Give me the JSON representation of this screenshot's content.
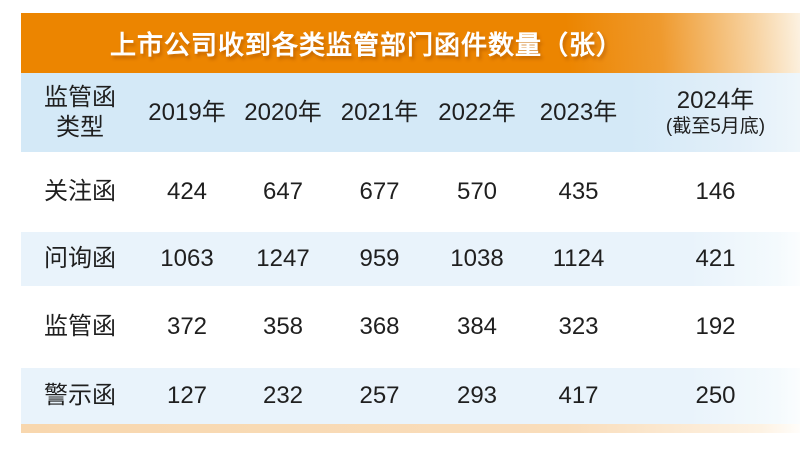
{
  "title": "上市公司收到各类监管部门函件数量（张）",
  "colors": {
    "accent_orange": "#ec8500",
    "header_band_blue": "#d4e9f7",
    "row_band_blue": "#e9f3fb",
    "strip_peach": "#f8d7ae",
    "text": "#1f1f1f",
    "title_text": "#ffffff"
  },
  "table": {
    "col0_header_line1": "监管函",
    "col0_header_line2": "类型",
    "year_headers": [
      "2019年",
      "2020年",
      "2021年",
      "2022年",
      "2023年"
    ],
    "last_header_line1": "2024年",
    "last_header_line2": "(截至5月底)",
    "rows": [
      {
        "label": "关注函",
        "values": [
          "424",
          "647",
          "677",
          "570",
          "435",
          "146"
        ]
      },
      {
        "label": "问询函",
        "values": [
          "1063",
          "1247",
          "959",
          "1038",
          "1124",
          "421"
        ]
      },
      {
        "label": "监管函",
        "values": [
          "372",
          "358",
          "368",
          "384",
          "323",
          "192"
        ]
      },
      {
        "label": "警示函",
        "values": [
          "127",
          "232",
          "257",
          "293",
          "417",
          "250"
        ]
      }
    ]
  },
  "chart_data": {
    "type": "table",
    "title": "上市公司收到各类监管部门函件数量（张）",
    "row_header": "监管函类型",
    "categories": [
      "2019年",
      "2020年",
      "2021年",
      "2022年",
      "2023年",
      "2024年(截至5月底)"
    ],
    "series": [
      {
        "name": "关注函",
        "values": [
          424,
          647,
          677,
          570,
          435,
          146
        ]
      },
      {
        "name": "问询函",
        "values": [
          1063,
          1247,
          959,
          1038,
          1124,
          421
        ]
      },
      {
        "name": "监管函",
        "values": [
          372,
          358,
          368,
          384,
          323,
          192
        ]
      },
      {
        "name": "警示函",
        "values": [
          127,
          232,
          257,
          293,
          417,
          250
        ]
      }
    ],
    "layout": {
      "header_band": "light-blue",
      "alternating_rows": true,
      "grid": false
    }
  }
}
